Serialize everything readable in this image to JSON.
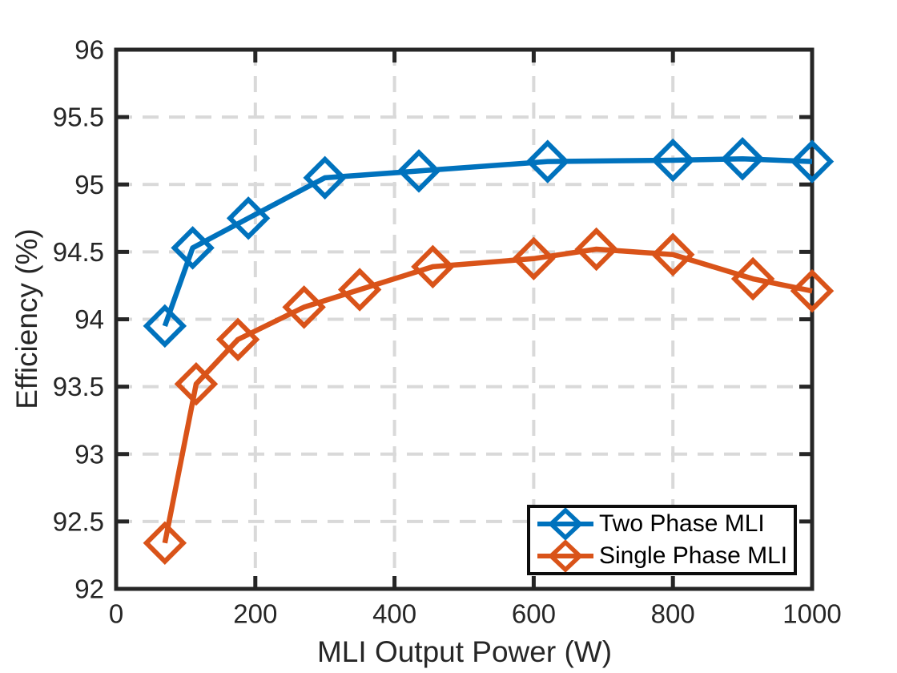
{
  "chart_data": {
    "type": "line",
    "title": "",
    "xlabel": "MLI Output Power (W)",
    "ylabel": "Efficiency (%)",
    "xlim": [
      0,
      1000
    ],
    "ylim": [
      92,
      96
    ],
    "xticks": [
      0,
      200,
      400,
      600,
      800,
      1000
    ],
    "yticks": [
      92,
      92.5,
      93,
      93.5,
      94,
      94.5,
      95,
      95.5,
      96
    ],
    "grid": true,
    "grid_style": "dashed",
    "legend_position": "bottom-right",
    "series": [
      {
        "name": "Two Phase MLI",
        "color": "#0072BD",
        "marker": "diamond",
        "x": [
          70,
          110,
          190,
          300,
          435,
          620,
          800,
          900,
          1000
        ],
        "y": [
          93.95,
          94.53,
          94.75,
          95.05,
          95.1,
          95.17,
          95.18,
          95.19,
          95.17
        ]
      },
      {
        "name": "Single Phase MLI",
        "color": "#D95319",
        "marker": "diamond",
        "x": [
          70,
          115,
          175,
          270,
          350,
          455,
          600,
          690,
          800,
          915,
          1000
        ],
        "y": [
          92.34,
          93.52,
          93.85,
          94.09,
          94.22,
          94.39,
          94.45,
          94.52,
          94.48,
          94.3,
          94.21
        ]
      }
    ],
    "colors": {
      "axis": "#262626",
      "grid": "#d9d9d9",
      "background": "#ffffff",
      "legend_text": "#000000"
    }
  }
}
